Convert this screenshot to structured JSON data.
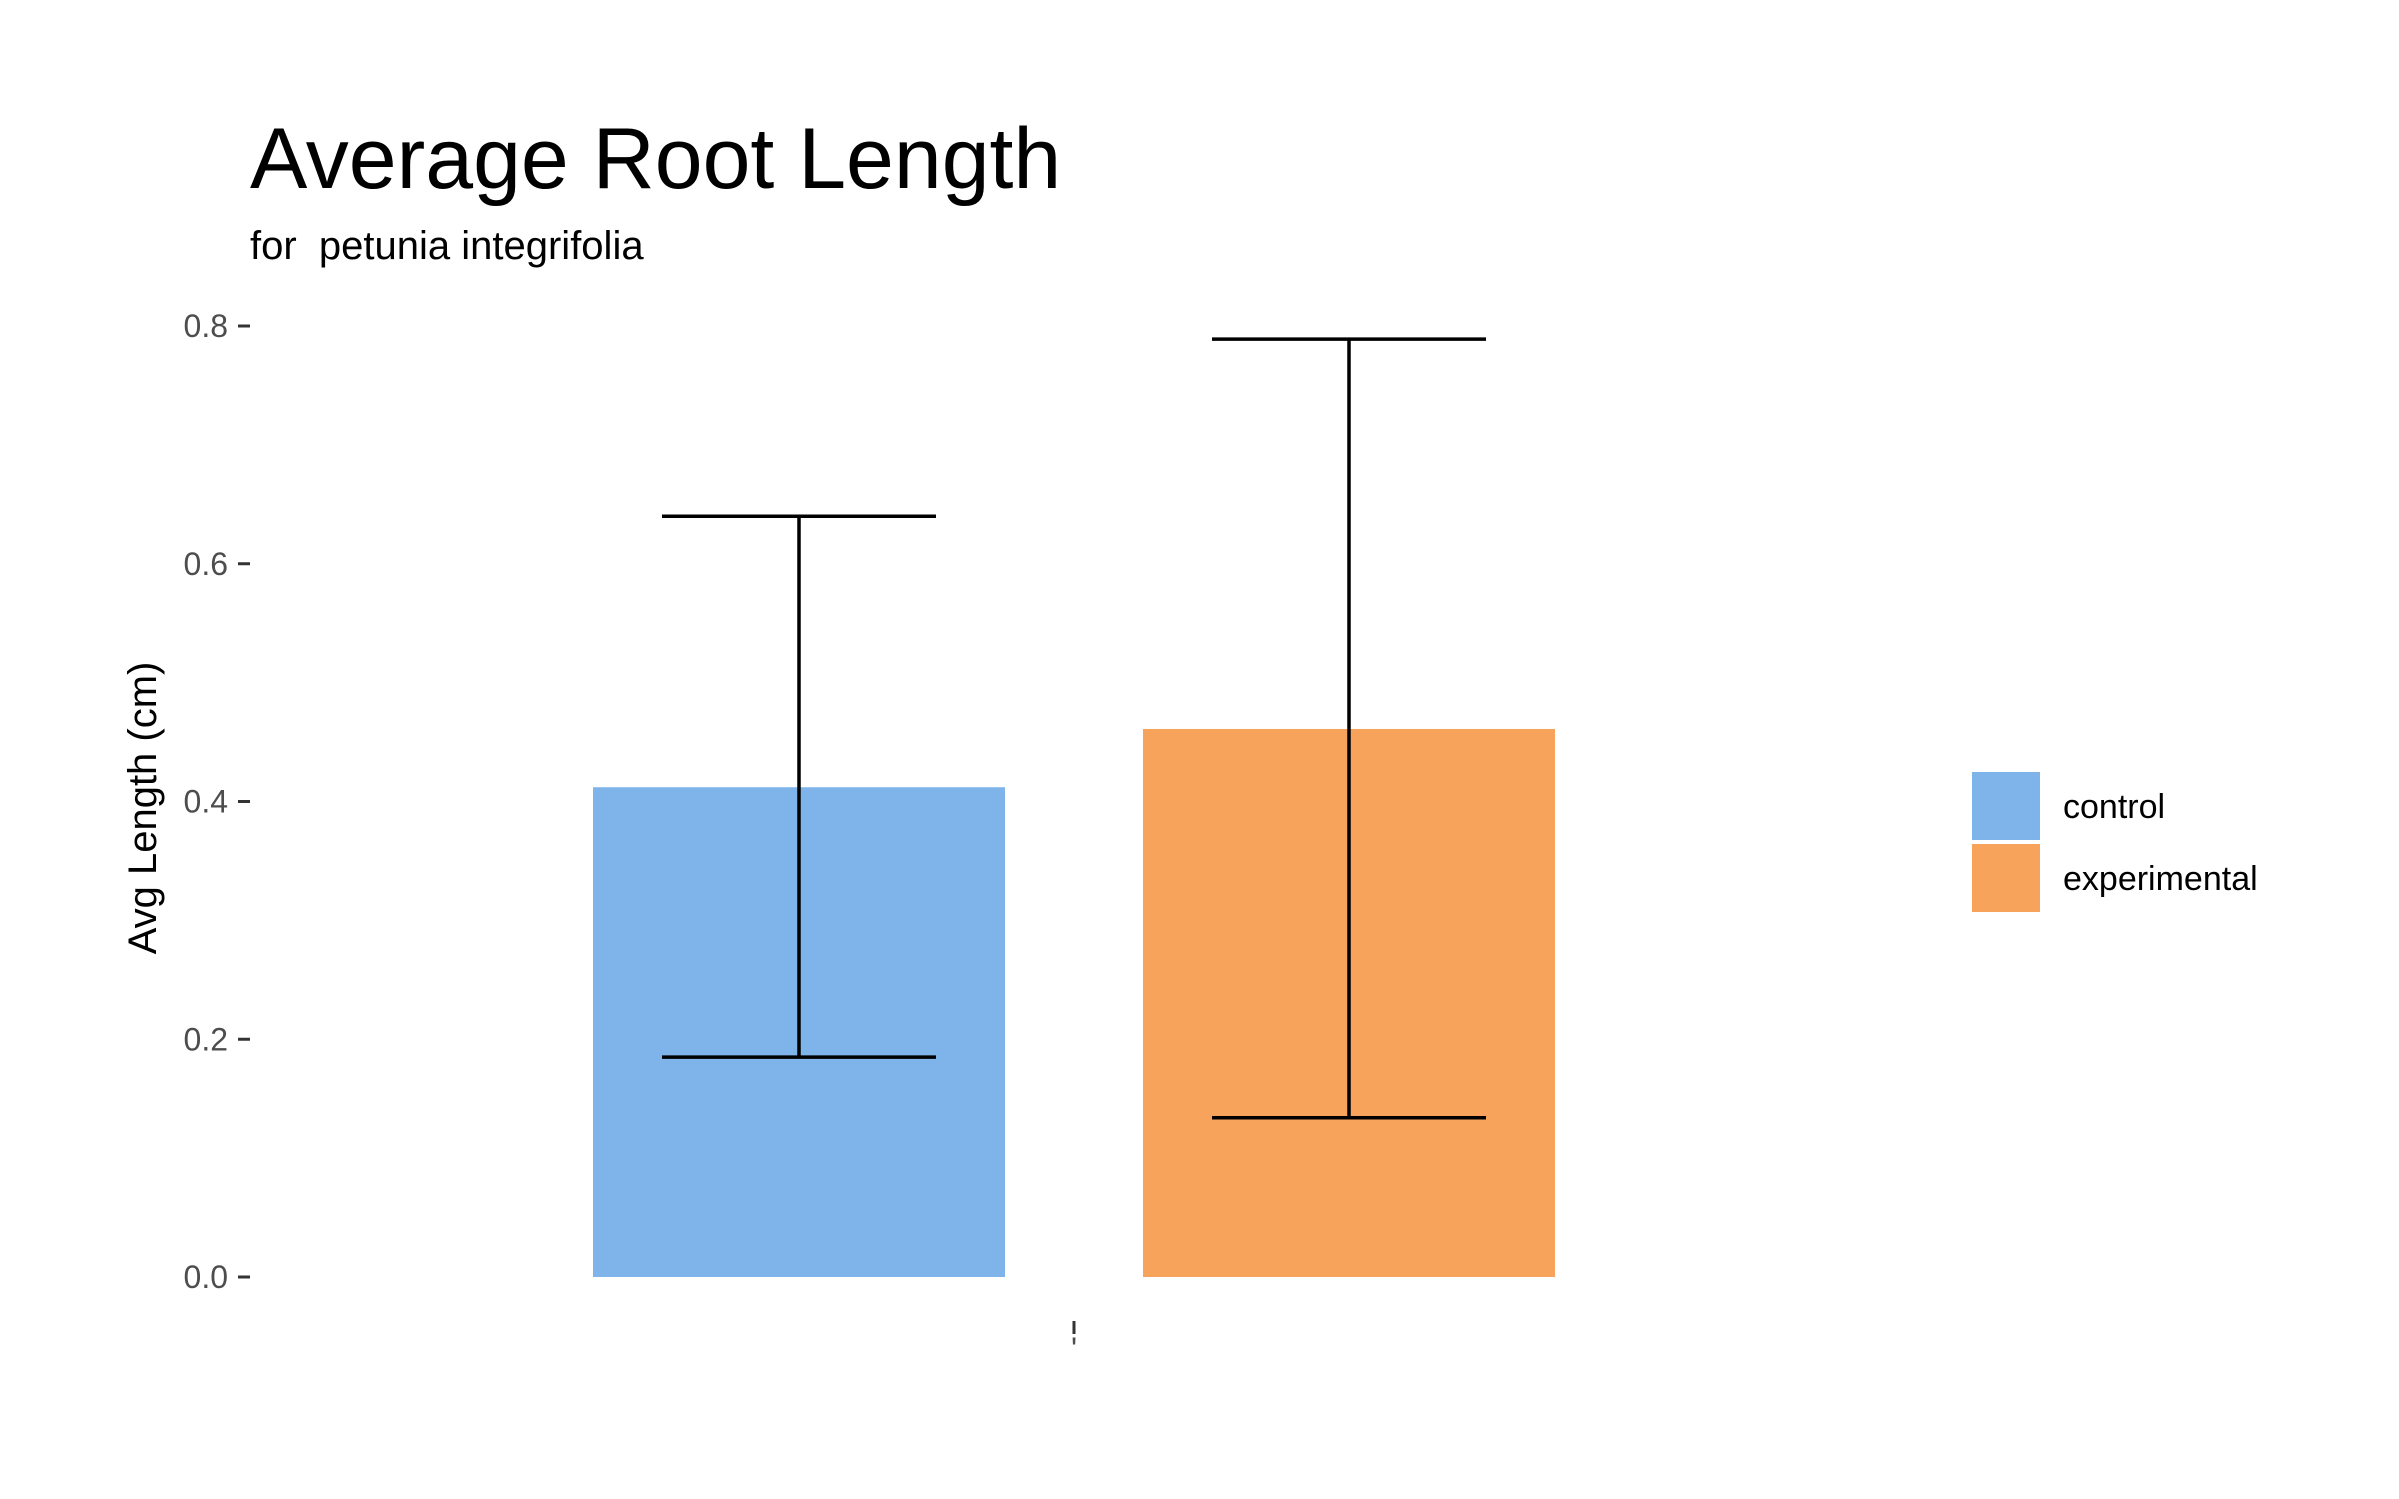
{
  "chart_data": {
    "type": "bar",
    "title": "Average Root Length",
    "subtitle": "for  petunia integrifolia",
    "xlabel": "",
    "ylabel": "Avg Length (cm)",
    "categories": [
      ""
    ],
    "x_tick_labels": [
      "'"
    ],
    "ylim": [
      0,
      0.8
    ],
    "yticks": [
      0.0,
      0.2,
      0.4,
      0.6,
      0.8
    ],
    "ytick_labels": [
      "0.0",
      "0.2",
      "0.4",
      "0.6",
      "0.8"
    ],
    "grid": false,
    "legend_position": "right",
    "series": [
      {
        "name": "control",
        "values": [
          0.412
        ],
        "error_low": [
          0.185
        ],
        "error_high": [
          0.64
        ],
        "color": "#7EB4EA"
      },
      {
        "name": "experimental",
        "values": [
          0.461
        ],
        "error_low": [
          0.134
        ],
        "error_high": [
          0.789
        ],
        "color": "#F7A35C"
      }
    ],
    "error_bar_color": "#000000"
  }
}
